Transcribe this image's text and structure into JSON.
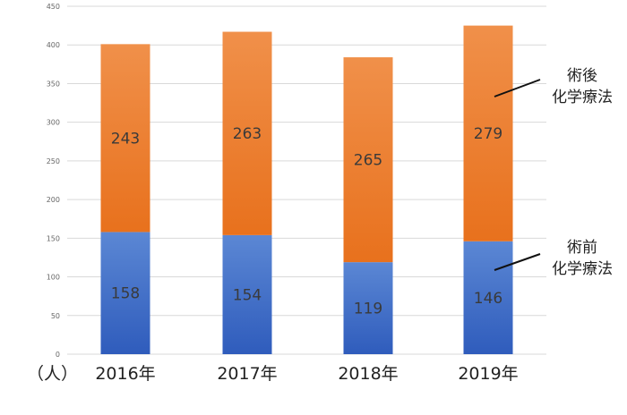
{
  "chart_data": {
    "type": "bar",
    "stacked": true,
    "categories": [
      "2016年",
      "2017年",
      "2018年",
      "2019年"
    ],
    "series": [
      {
        "name": "術前化学療法",
        "name_lines": [
          "術前",
          "化学療法"
        ],
        "values": [
          158,
          154,
          119,
          146
        ],
        "color_top": "#5b87d4",
        "color_bottom": "#2f5cbc"
      },
      {
        "name": "術後化学療法",
        "name_lines": [
          "術後",
          "化学療法"
        ],
        "values": [
          243,
          263,
          265,
          279
        ],
        "color_top": "#f0904a",
        "color_bottom": "#e8711d"
      }
    ],
    "unit_label": "（人）",
    "ylim": [
      0,
      450
    ],
    "yticks": [
      0,
      50,
      100,
      150,
      200,
      250,
      300,
      350,
      400,
      450
    ],
    "grid": true,
    "legend_placement": "right"
  }
}
